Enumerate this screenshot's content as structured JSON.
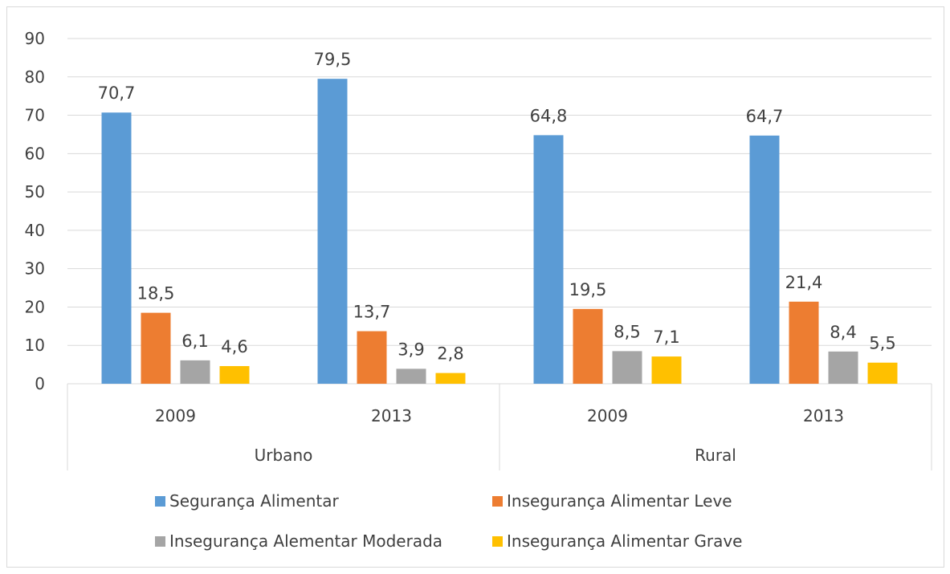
{
  "chart_data": {
    "type": "bar",
    "title": "",
    "xlabel": "",
    "ylabel": "",
    "ylim": [
      0,
      90
    ],
    "y_ticks": [
      "0",
      "10",
      "20",
      "30",
      "40",
      "50",
      "60",
      "70",
      "80",
      "90"
    ],
    "grid": true,
    "groups": [
      {
        "name": "Urbano",
        "categories": [
          "2009",
          "2013"
        ]
      },
      {
        "name": "Rural",
        "categories": [
          "2009",
          "2013"
        ]
      }
    ],
    "categories": [
      "2009",
      "2013",
      "2009",
      "2013"
    ],
    "series": [
      {
        "name": "Segurança Alimentar",
        "color": "#5b9bd5",
        "values": [
          70.7,
          79.5,
          64.8,
          64.7
        ],
        "labels": [
          "70,7",
          "79,5",
          "64,8",
          "64,7"
        ]
      },
      {
        "name": "Insegurança Alimentar Leve",
        "color": "#ed7d31",
        "values": [
          18.5,
          13.7,
          19.5,
          21.4
        ],
        "labels": [
          "18,5",
          "13,7",
          "19,5",
          "21,4"
        ]
      },
      {
        "name": "Insegurança Alementar Moderada",
        "color": "#a5a5a5",
        "values": [
          6.1,
          3.9,
          8.5,
          8.4
        ],
        "labels": [
          "6,1",
          "3,9",
          "8,5",
          "8,4"
        ]
      },
      {
        "name": "Insegurança Alimentar Grave",
        "color": "#ffc000",
        "values": [
          4.6,
          2.8,
          7.1,
          5.5
        ],
        "labels": [
          "4,6",
          "2,8",
          "7,1",
          "5,5"
        ]
      }
    ],
    "legend_position": "bottom"
  }
}
